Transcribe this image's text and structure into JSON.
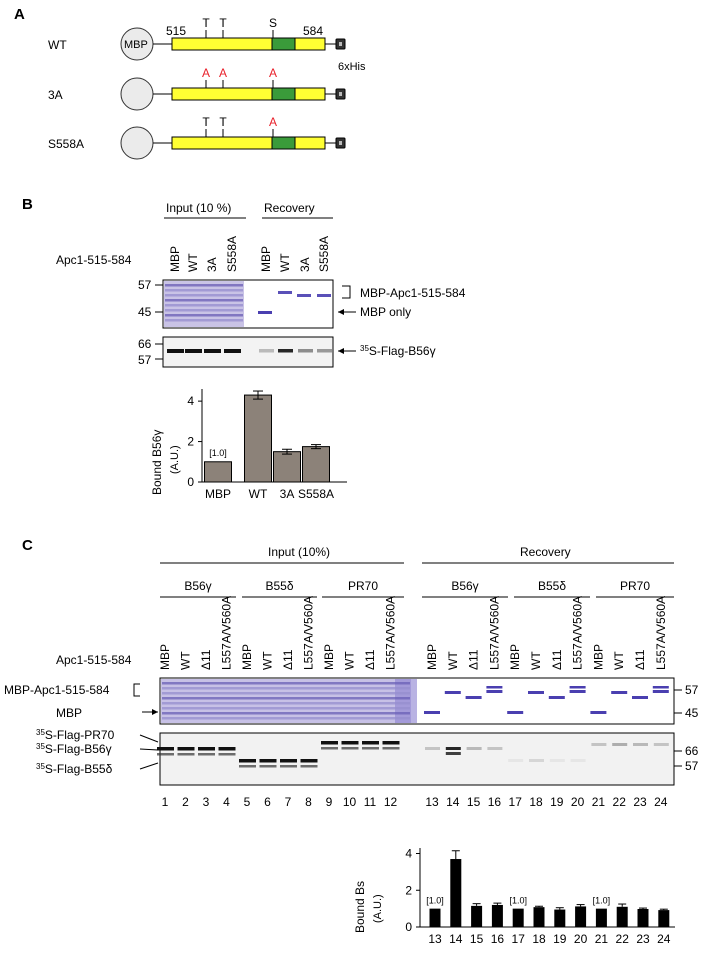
{
  "panelA": {
    "letter": "A",
    "constructs": [
      {
        "name": "WT",
        "sites": [
          "T",
          "T",
          "S"
        ],
        "mutated": [
          false,
          false,
          false
        ]
      },
      {
        "name": "3A",
        "sites": [
          "A",
          "A",
          "A"
        ],
        "mutated": [
          true,
          true,
          true
        ]
      },
      {
        "name": "S558A",
        "sites": [
          "T",
          "T",
          "A"
        ],
        "mutated": [
          false,
          false,
          true
        ]
      }
    ],
    "mbp_label": "MBP",
    "start": "515",
    "end": "584",
    "tag": "6xHis",
    "colors": {
      "region": "#ffff33",
      "motif": "#3a9b3a",
      "mutation": "#e8202a"
    }
  },
  "panelB": {
    "letter": "B",
    "input_header": "Input (10 %)",
    "recovery_header": "Recovery",
    "row_label": "Apc1-515-584",
    "lanes": [
      "MBP",
      "WT",
      "3A",
      "S558A",
      "MBP",
      "WT",
      "3A",
      "S558A"
    ],
    "gel1_markers": [
      "57",
      "45"
    ],
    "gel1_labels": [
      "MBP-Apc1-515-584",
      "MBP only"
    ],
    "gel2_markers": [
      "66",
      "57"
    ],
    "gel2_label_sup": "35",
    "gel2_label": "S-Flag-B56γ",
    "chart_ylabel": "Bound B56γ",
    "chart_yunit": "(A.U.)",
    "chart_note": "[1.0]"
  },
  "panelC": {
    "letter": "C",
    "input_header": "Input (10%)",
    "recovery_header": "Recovery",
    "groups": [
      "B56γ",
      "B55δ",
      "PR70",
      "B56γ",
      "B55δ",
      "PR70"
    ],
    "row_label": "Apc1-515-584",
    "lanes": [
      "MBP",
      "WT",
      "Δ11",
      "L557A/V560A",
      "MBP",
      "WT",
      "Δ11",
      "L557A/V560A",
      "MBP",
      "WT",
      "Δ11",
      "L557A/V560A",
      "MBP",
      "WT",
      "Δ11",
      "L557A/V560A",
      "MBP",
      "WT",
      "Δ11",
      "L557A/V560A",
      "MBP",
      "WT",
      "Δ11",
      "L557A/V560A"
    ],
    "lane_numbers": [
      "1",
      "2",
      "3",
      "4",
      "5",
      "6",
      "7",
      "8",
      "9",
      "10",
      "11",
      "12",
      "13",
      "14",
      "15",
      "16",
      "17",
      "18",
      "19",
      "20",
      "21",
      "22",
      "23",
      "24"
    ],
    "gel1_left_labels": [
      "MBP-Apc1-515-584",
      "MBP"
    ],
    "gel1_markers": [
      "57",
      "45"
    ],
    "gel2_left_labels": [
      "S-Flag-PR70",
      "S-Flag-B56γ",
      "S-Flag-B55δ"
    ],
    "gel2_label_sup": "35",
    "gel2_markers": [
      "66",
      "57"
    ],
    "chart_ylabel": "Bound Bs",
    "chart_yunit": "(A.U.)",
    "chart_note": "[1.0]"
  },
  "chart_data": [
    {
      "type": "bar",
      "categories": [
        "MBP",
        "WT",
        "3A",
        "S558A"
      ],
      "values": [
        1.0,
        4.3,
        1.5,
        1.75
      ],
      "errors": [
        0,
        0.2,
        0.12,
        0.1
      ],
      "ylabel": "Bound B56γ (A.U.)",
      "ylim": [
        0,
        4.6
      ],
      "yticks": [
        0,
        2,
        4
      ],
      "color": "#8c8279"
    },
    {
      "type": "bar",
      "categories": [
        "13",
        "14",
        "15",
        "16",
        "17",
        "18",
        "19",
        "20",
        "21",
        "22",
        "23",
        "24"
      ],
      "values": [
        1.0,
        3.7,
        1.15,
        1.2,
        1.0,
        1.08,
        0.95,
        1.12,
        1.0,
        1.1,
        0.98,
        0.92
      ],
      "errors": [
        0,
        0.45,
        0.12,
        0.1,
        0,
        0.05,
        0.1,
        0.1,
        0,
        0.15,
        0.05,
        0.05
      ],
      "ylabel": "Bound Bs (A.U.)",
      "ylim": [
        0,
        4.3
      ],
      "yticks": [
        0,
        2,
        4
      ],
      "color": "#000000"
    }
  ]
}
